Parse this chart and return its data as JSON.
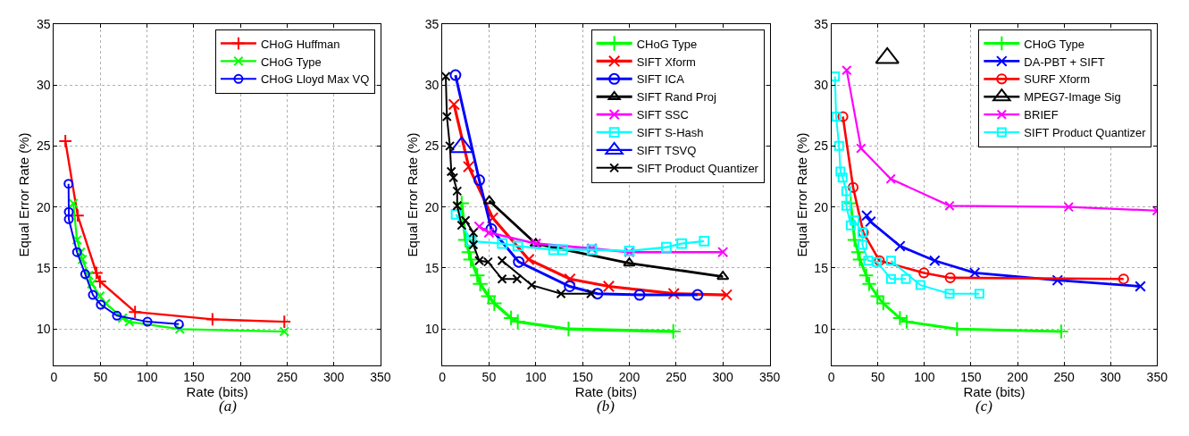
{
  "chart_data": [
    {
      "type": "line",
      "xlabel": "Rate (bits)",
      "ylabel": "Equal Error Rate (%)",
      "annotations": [
        "(a)"
      ],
      "xlim": [
        0,
        350
      ],
      "xticks": [
        0,
        50,
        100,
        150,
        200,
        250,
        300,
        350
      ],
      "ylim": [
        7,
        35
      ],
      "yticks": [
        10,
        15,
        20,
        25,
        30,
        35
      ],
      "grid": true,
      "legend": "top right",
      "line_style": "solid",
      "series": [
        {
          "name": "CHoG Huffman",
          "color": "#ff0000",
          "marker": "cross",
          "x": [
            12.3,
            25.5,
            45.6,
            49.4,
            87,
            170,
            247
          ],
          "values": [
            25.4,
            19.3,
            14.6,
            13.9,
            11.4,
            10.8,
            10.6
          ]
        },
        {
          "name": "CHoG Type",
          "color": "#00ff00",
          "marker": "x",
          "x": [
            20.8,
            24.8,
            28.6,
            30.5,
            37.4,
            40.6,
            49.4,
            55.7,
            73.6,
            80.8,
            135,
            247
          ],
          "values": [
            20.3,
            17.3,
            16.3,
            15.7,
            14.4,
            13.7,
            12.7,
            12.1,
            10.9,
            10.6,
            10.0,
            9.8
          ]
        },
        {
          "name": "CHoG Lloyd Max VQ",
          "color": "#0000ff",
          "marker": "circle",
          "x": [
            15.7,
            16,
            16,
            24.8,
            33.6,
            41.8,
            50.3,
            67.6,
            100.3,
            134
          ],
          "values": [
            21.9,
            19.6,
            19.0,
            16.3,
            14.5,
            12.8,
            12.0,
            11.1,
            10.6,
            10.4
          ]
        }
      ]
    },
    {
      "type": "line",
      "xlabel": "Rate (bits)",
      "ylabel": "Equal Error Rate (%)",
      "annotations": [
        "(b)"
      ],
      "xlim": [
        0,
        350
      ],
      "xticks": [
        0,
        50,
        100,
        150,
        200,
        250,
        300,
        350
      ],
      "ylim": [
        7,
        35
      ],
      "yticks": [
        10,
        15,
        20,
        25,
        30,
        35
      ],
      "grid": true,
      "legend": "top right",
      "line_style": "solid",
      "series": [
        {
          "name": "CHoG Type",
          "color": "#00ff00",
          "marker": "cross",
          "x": [
            20.8,
            24.8,
            28.6,
            30.5,
            37.4,
            40.6,
            49.4,
            55.7,
            73.6,
            80.8,
            135,
            247
          ],
          "values": [
            20.3,
            17.3,
            16.3,
            15.7,
            14.4,
            13.7,
            12.7,
            12.1,
            10.9,
            10.6,
            10.0,
            9.8
          ]
        },
        {
          "name": "SIFT Xform",
          "color": "#ff0000",
          "marker": "x",
          "x": [
            12.6,
            28.3,
            54,
            92.5,
            136.5,
            178,
            247.5,
            304
          ],
          "values": [
            28.4,
            23.3,
            19.1,
            15.7,
            14.1,
            13.5,
            12.9,
            12.8
          ]
        },
        {
          "name": "SIFT ICA",
          "color": "#0000ff",
          "marker": "circle",
          "x": [
            14.2,
            39.6,
            52.5,
            81.8,
            136.2,
            166,
            211,
            273
          ],
          "values": [
            30.8,
            22.2,
            18.2,
            15.5,
            13.5,
            12.9,
            12.8,
            12.8
          ]
        },
        {
          "name": "SIFT Rand Proj",
          "color": "#000000",
          "marker": "triangle",
          "x": [
            50.3,
            100,
            200,
            300
          ],
          "values": [
            20.5,
            17.0,
            15.4,
            14.3
          ]
        },
        {
          "name": "SIFT SSC",
          "color": "#ff00ff",
          "marker": "x",
          "x": [
            39.6,
            50,
            100.3,
            160,
            200,
            300
          ],
          "values": [
            18.4,
            17.9,
            17.0,
            16.6,
            16.3,
            16.3
          ]
        },
        {
          "name": "SIFT S-Hash",
          "color": "#00ffff",
          "marker": "square",
          "x": [
            14.8,
            31,
            64.2,
            80.8,
            119,
            128.6,
            160,
            200,
            239.6,
            256,
            280
          ],
          "values": [
            19.4,
            17.2,
            17.0,
            16.8,
            16.5,
            16.5,
            16.5,
            16.4,
            16.7,
            17.0,
            17.2
          ]
        },
        {
          "name": "SIFT TSVQ",
          "color": "#0000ff",
          "marker": "triangle",
          "x": [
            20.8
          ],
          "values": [
            24.9
          ]
        },
        {
          "name": "SIFT Product Quantizer",
          "color": "#000000",
          "marker": "x",
          "x": [
            3.8,
            5,
            8.2,
            9.7,
            12,
            16,
            16,
            20.8,
            24.8,
            33.3,
            33.3,
            39.6,
            49,
            64,
            80,
            null,
            64,
            95.6,
            127,
            159
          ],
          "values": [
            30.7,
            27.4,
            25.0,
            22.9,
            22.4,
            21.3,
            20.1,
            18.5,
            18.9,
            17.9,
            16.9,
            15.6,
            15.5,
            14.1,
            14.1,
            null,
            15.6,
            13.6,
            12.9,
            12.9
          ]
        }
      ]
    },
    {
      "type": "line",
      "xlabel": "Rate (bits)",
      "ylabel": "Equal Error Rate (%)",
      "annotations": [
        "(c)"
      ],
      "xlim": [
        0,
        350
      ],
      "xticks": [
        0,
        50,
        100,
        150,
        200,
        250,
        300,
        350
      ],
      "ylim": [
        7,
        35
      ],
      "yticks": [
        10,
        15,
        20,
        25,
        30,
        35
      ],
      "grid": true,
      "legend": "top right",
      "line_style": "solid",
      "series": [
        {
          "name": "CHoG Type",
          "color": "#00ff00",
          "marker": "cross",
          "x": [
            20.8,
            24.8,
            28.6,
            30.5,
            37.4,
            40.6,
            49.4,
            55.7,
            73.6,
            80.8,
            135,
            247
          ],
          "values": [
            20.3,
            17.3,
            16.3,
            15.7,
            14.4,
            13.7,
            12.7,
            12.1,
            10.9,
            10.6,
            10.0,
            9.8
          ]
        },
        {
          "name": "DA-PBT + SIFT",
          "color": "#0000ff",
          "marker": "x",
          "x": [
            38,
            42,
            73.6,
            111,
            154,
            243,
            332
          ],
          "values": [
            19.3,
            18.8,
            16.8,
            15.6,
            14.6,
            14.0,
            13.5
          ]
        },
        {
          "name": "SURF Xform",
          "color": "#ff0000",
          "marker": "circle",
          "x": [
            12.3,
            23.3,
            34.3,
            51.6,
            99.4,
            127.7,
            314
          ],
          "values": [
            27.4,
            21.6,
            17.9,
            15.6,
            14.6,
            14.2,
            14.1
          ]
        },
        {
          "name": "MPEG7-Image Sig",
          "color": "#000000",
          "marker": "triangle",
          "x": [
            60
          ],
          "values": [
            32.2
          ]
        },
        {
          "name": "BRIEF",
          "color": "#ff00ff",
          "marker": "x",
          "x": [
            16.4,
            31.8,
            63.8,
            127,
            255,
            350
          ],
          "values": [
            31.2,
            24.8,
            22.3,
            20.1,
            20.0,
            19.7
          ]
        },
        {
          "name": "SIFT Product Quantizer",
          "color": "#00ffff",
          "marker": "square",
          "x": [
            3.8,
            5,
            8.2,
            9.7,
            12,
            16,
            16,
            20.8,
            24.8,
            33.3,
            33.3,
            39.6,
            49,
            64,
            80,
            null,
            64,
            95.6,
            127,
            159
          ],
          "values": [
            30.7,
            27.4,
            25.0,
            22.9,
            22.4,
            21.3,
            20.1,
            18.5,
            18.9,
            17.9,
            16.9,
            15.6,
            15.5,
            14.1,
            14.1,
            null,
            15.6,
            13.6,
            12.9,
            12.9
          ]
        }
      ]
    }
  ]
}
